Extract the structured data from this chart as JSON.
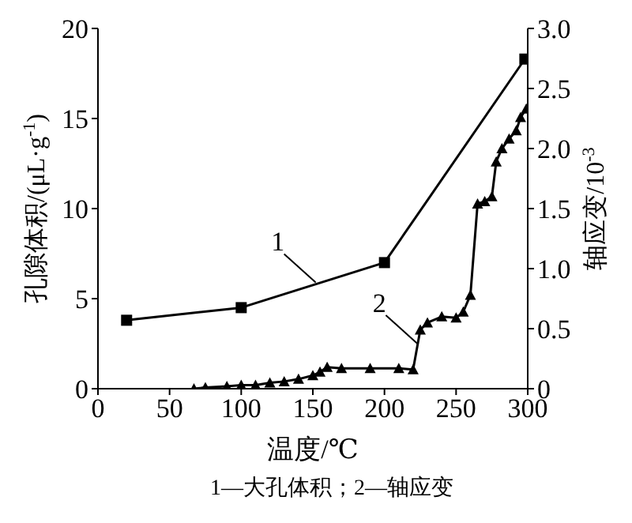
{
  "chart_data": {
    "type": "line",
    "xlabel": "温度/℃",
    "ylabel": "孔隙体积/(μL·g$^{-1}$)",
    "y2label": "轴应变/10$^{-3}$",
    "xlim": [
      0,
      300
    ],
    "xticks": [
      0,
      50,
      100,
      150,
      200,
      250,
      300
    ],
    "ylim": [
      0,
      20
    ],
    "yticks": [
      0,
      5,
      10,
      15,
      20
    ],
    "y2lim": [
      0,
      3
    ],
    "y2ticks": [
      0,
      0.5,
      {
        "value": 1,
        "label": "1.0"
      },
      1.5,
      {
        "value": 2,
        "label": "2.0"
      },
      2.5,
      {
        "value": 3,
        "label": "3.0"
      }
    ],
    "series": [
      {
        "color": "#000000",
        "marker": "square",
        "x": [
          20,
          100,
          200,
          298
        ],
        "values": [
          3.8,
          4.5,
          7.0,
          18.3
        ]
      },
      {
        "color": "#000000",
        "marker": "triangle",
        "axis": "y2",
        "x": [
          67,
          75,
          90,
          100,
          110,
          120,
          130,
          140,
          150,
          155,
          160,
          170,
          190,
          210,
          220,
          225,
          230,
          240,
          250,
          255,
          260,
          265,
          270,
          275,
          278,
          282,
          287,
          292,
          295,
          299
        ],
        "values": [
          0,
          0.01,
          0.02,
          0.03,
          0.03,
          0.05,
          0.06,
          0.08,
          0.11,
          0.14,
          0.18,
          0.17,
          0.17,
          0.17,
          0.16,
          0.49,
          0.55,
          0.6,
          0.59,
          0.64,
          0.78,
          1.54,
          1.56,
          1.6,
          1.89,
          2.0,
          2.08,
          2.15,
          2.26,
          2.33
        ]
      }
    ],
    "annotations": [
      {
        "text": "1",
        "x": 152,
        "y": 5.9
      },
      {
        "text": "2",
        "x": 223,
        "y": 2.5
      },
      "1—大孔体积；2—轴应变"
    ]
  }
}
